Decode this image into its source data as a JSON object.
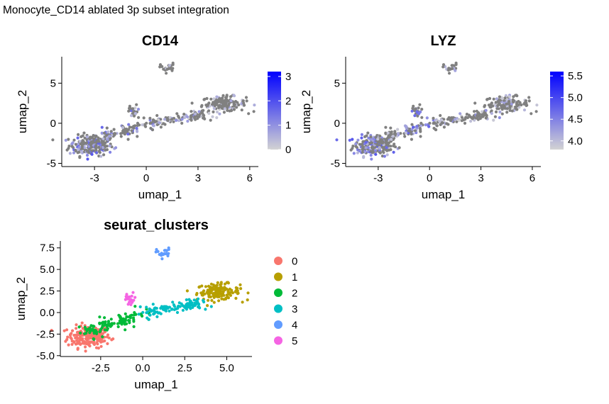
{
  "figure_title": "Monocyte_CD14 ablated 3p subset integration",
  "colors": {
    "low": "#d3d3d3",
    "high": "#0000ff",
    "cluster_palette": [
      "#F8766D",
      "#B79F00",
      "#00BA38",
      "#00BFC4",
      "#619CFF",
      "#F564E3"
    ]
  },
  "chart_data": [
    {
      "type": "scatter",
      "title": "CD14",
      "xlabel": "umap_1",
      "ylabel": "umap_2",
      "xlim": [
        -4.9,
        6.5
      ],
      "ylim": [
        -5.4,
        8.3
      ],
      "xticks": [
        -3,
        0,
        3,
        6
      ],
      "yticks": [
        -5,
        0,
        5
      ],
      "color_scale": {
        "min": 0,
        "max": 3.2,
        "ticks": [
          0,
          1,
          2,
          3
        ],
        "low": "#d3d3d3",
        "high": "#0000ff"
      },
      "grid": false,
      "legend": "right"
    },
    {
      "type": "scatter",
      "title": "LYZ",
      "xlabel": "umap_1",
      "ylabel": "umap_2",
      "xlim": [
        -4.9,
        6.5
      ],
      "ylim": [
        -5.4,
        8.3
      ],
      "xticks": [
        -3,
        0,
        3,
        6
      ],
      "yticks": [
        -5,
        0,
        5
      ],
      "color_scale": {
        "min": 3.8,
        "max": 5.6,
        "ticks": [
          4.0,
          4.5,
          5.0,
          5.5
        ],
        "tick_labels": [
          "4.0",
          "4.5",
          "5.0",
          "5.5"
        ],
        "low": "#d3d3d3",
        "high": "#0000ff"
      },
      "grid": false,
      "legend": "right"
    },
    {
      "type": "scatter",
      "title": "seurat_clusters",
      "xlabel": "umap_1",
      "ylabel": "umap_2",
      "xlim": [
        -4.9,
        6.5
      ],
      "ylim": [
        -5.1,
        8.3
      ],
      "xticks": [
        -2.5,
        0.0,
        2.5,
        5.0
      ],
      "xtick_labels": [
        "-2.5",
        "0.0",
        "2.5",
        "5.0"
      ],
      "yticks": [
        -5.0,
        -2.5,
        0.0,
        2.5,
        5.0,
        7.5
      ],
      "ytick_labels": [
        "-5.0",
        "-2.5",
        "0.0",
        "2.5",
        "5.0",
        "7.5"
      ],
      "legend_entries": [
        "0",
        "1",
        "2",
        "3",
        "4",
        "5"
      ],
      "grid": false,
      "legend": "right",
      "clusters": [
        {
          "name": "0",
          "center": [
            -3.2,
            -2.8
          ],
          "spread": [
            0.75,
            0.75
          ],
          "n": 190
        },
        {
          "name": "1",
          "center": [
            4.5,
            2.4
          ],
          "spread": [
            0.75,
            0.55
          ],
          "n": 140
        },
        {
          "name": "2",
          "center": [
            -1.6,
            -1.0
          ],
          "spread": [
            0.9,
            0.7
          ],
          "n": 115
        },
        {
          "name": "3",
          "center": [
            2.0,
            0.5
          ],
          "spread": [
            0.75,
            0.5
          ],
          "n": 105
        },
        {
          "name": "4",
          "center": [
            1.25,
            6.9
          ],
          "spread": [
            0.25,
            0.35
          ],
          "n": 22
        },
        {
          "name": "5",
          "center": [
            -0.75,
            1.5
          ],
          "spread": [
            0.25,
            0.45
          ],
          "n": 22
        }
      ]
    }
  ]
}
